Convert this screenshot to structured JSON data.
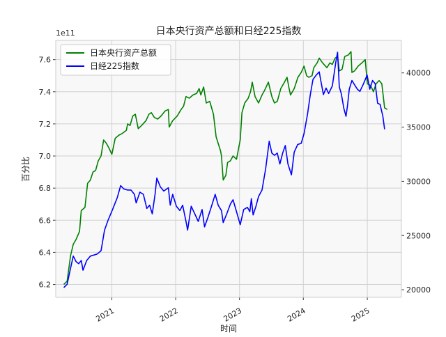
{
  "chart_data": {
    "type": "line",
    "title": "日本央行资产总额和日经225指数",
    "xlabel": "时间",
    "ylabel_left": "百分比",
    "left_offset_text": "1e11",
    "x_ticks": [
      {
        "label": "2021",
        "date": "2021-01-01"
      },
      {
        "label": "2022",
        "date": "2022-01-01"
      },
      {
        "label": "2023",
        "date": "2023-01-01"
      },
      {
        "label": "2024",
        "date": "2024-01-01"
      },
      {
        "label": "2025",
        "date": "2025-01-01"
      }
    ],
    "xlim": [
      "2020-02-15",
      "2025-07-15"
    ],
    "ylim_left": [
      6.12,
      7.72
    ],
    "yticks_left": [
      {
        "value": 6.2,
        "label": "6.2"
      },
      {
        "value": 6.4,
        "label": "6.4"
      },
      {
        "value": 6.6,
        "label": "6.6"
      },
      {
        "value": 6.8,
        "label": "6.8"
      },
      {
        "value": 7.0,
        "label": "7.0"
      },
      {
        "value": 7.2,
        "label": "7.2"
      },
      {
        "value": 7.4,
        "label": "7.4"
      },
      {
        "value": 7.6,
        "label": "7.6"
      }
    ],
    "ylim_right": [
      19300,
      43000
    ],
    "yticks_right": [
      {
        "value": 20000,
        "label": "20000"
      },
      {
        "value": 25000,
        "label": "25000"
      },
      {
        "value": 30000,
        "label": "30000"
      },
      {
        "value": 35000,
        "label": "35000"
      },
      {
        "value": 40000,
        "label": "40000"
      }
    ],
    "grid": true,
    "legend_position": "top-left",
    "series": [
      {
        "name": "日本央行资产总额",
        "axis": "left",
        "color": "#008000",
        "points": [
          [
            "2020-04-01",
            6.2
          ],
          [
            "2020-04-20",
            6.22
          ],
          [
            "2020-05-10",
            6.38
          ],
          [
            "2020-05-25",
            6.45
          ],
          [
            "2020-06-10",
            6.48
          ],
          [
            "2020-06-30",
            6.53
          ],
          [
            "2020-07-10",
            6.66
          ],
          [
            "2020-07-31",
            6.68
          ],
          [
            "2020-08-15",
            6.83
          ],
          [
            "2020-08-31",
            6.85
          ],
          [
            "2020-09-15",
            6.9
          ],
          [
            "2020-09-30",
            6.91
          ],
          [
            "2020-10-15",
            6.97
          ],
          [
            "2020-10-31",
            7.0
          ],
          [
            "2020-11-15",
            7.1
          ],
          [
            "2020-11-30",
            7.08
          ],
          [
            "2020-12-15",
            7.05
          ],
          [
            "2021-01-01",
            7.01
          ],
          [
            "2021-01-20",
            7.11
          ],
          [
            "2021-02-10",
            7.13
          ],
          [
            "2021-03-01",
            7.14
          ],
          [
            "2021-03-25",
            7.16
          ],
          [
            "2021-04-01",
            7.2
          ],
          [
            "2021-04-15",
            7.19
          ],
          [
            "2021-05-01",
            7.25
          ],
          [
            "2021-05-15",
            7.26
          ],
          [
            "2021-06-01",
            7.17
          ],
          [
            "2021-06-20",
            7.19
          ],
          [
            "2021-07-15",
            7.22
          ],
          [
            "2021-08-01",
            7.26
          ],
          [
            "2021-08-15",
            7.27
          ],
          [
            "2021-09-01",
            7.24
          ],
          [
            "2021-09-20",
            7.23
          ],
          [
            "2021-10-10",
            7.25
          ],
          [
            "2021-11-01",
            7.28
          ],
          [
            "2021-11-20",
            7.29
          ],
          [
            "2021-11-25",
            7.18
          ],
          [
            "2021-12-15",
            7.22
          ],
          [
            "2022-01-10",
            7.25
          ],
          [
            "2022-02-01",
            7.29
          ],
          [
            "2022-02-15",
            7.31
          ],
          [
            "2022-03-01",
            7.37
          ],
          [
            "2022-03-20",
            7.36
          ],
          [
            "2022-04-10",
            7.38
          ],
          [
            "2022-05-01",
            7.39
          ],
          [
            "2022-05-15",
            7.42
          ],
          [
            "2022-05-25",
            7.38
          ],
          [
            "2022-06-10",
            7.43
          ],
          [
            "2022-06-25",
            7.33
          ],
          [
            "2022-07-15",
            7.34
          ],
          [
            "2022-08-05",
            7.26
          ],
          [
            "2022-08-20",
            7.12
          ],
          [
            "2022-09-15",
            7.03
          ],
          [
            "2022-09-20",
            7.0
          ],
          [
            "2022-09-30",
            6.85
          ],
          [
            "2022-10-15",
            6.88
          ],
          [
            "2022-10-25",
            6.96
          ],
          [
            "2022-11-10",
            6.97
          ],
          [
            "2022-11-25",
            7.0
          ],
          [
            "2022-12-15",
            6.98
          ],
          [
            "2023-01-05",
            7.1
          ],
          [
            "2023-01-15",
            7.27
          ],
          [
            "2023-01-31",
            7.33
          ],
          [
            "2023-02-20",
            7.36
          ],
          [
            "2023-03-05",
            7.4
          ],
          [
            "2023-03-15",
            7.46
          ],
          [
            "2023-03-31",
            7.37
          ],
          [
            "2023-04-20",
            7.33
          ],
          [
            "2023-05-10",
            7.38
          ],
          [
            "2023-05-25",
            7.41
          ],
          [
            "2023-06-15",
            7.46
          ],
          [
            "2023-07-05",
            7.37
          ],
          [
            "2023-07-20",
            7.33
          ],
          [
            "2023-08-05",
            7.34
          ],
          [
            "2023-08-25",
            7.42
          ],
          [
            "2023-09-15",
            7.46
          ],
          [
            "2023-09-30",
            7.49
          ],
          [
            "2023-10-10",
            7.43
          ],
          [
            "2023-10-20",
            7.38
          ],
          [
            "2023-11-10",
            7.42
          ],
          [
            "2023-12-01",
            7.49
          ],
          [
            "2023-12-20",
            7.52
          ],
          [
            "2024-01-05",
            7.56
          ],
          [
            "2024-01-20",
            7.5
          ],
          [
            "2024-02-01",
            7.49
          ],
          [
            "2024-02-20",
            7.5
          ],
          [
            "2024-03-01",
            7.55
          ],
          [
            "2024-03-20",
            7.58
          ],
          [
            "2024-04-01",
            7.61
          ],
          [
            "2024-04-20",
            7.58
          ],
          [
            "2024-05-15",
            7.55
          ],
          [
            "2024-06-01",
            7.58
          ],
          [
            "2024-06-15",
            7.57
          ],
          [
            "2024-07-01",
            7.61
          ],
          [
            "2024-07-15",
            7.62
          ],
          [
            "2024-07-25",
            7.53
          ],
          [
            "2024-08-10",
            7.54
          ],
          [
            "2024-08-25",
            7.62
          ],
          [
            "2024-09-15",
            7.63
          ],
          [
            "2024-09-30",
            7.65
          ],
          [
            "2024-10-05",
            7.52
          ],
          [
            "2024-10-20",
            7.53
          ],
          [
            "2024-11-10",
            7.56
          ],
          [
            "2024-12-01",
            7.58
          ],
          [
            "2024-12-20",
            7.6
          ],
          [
            "2025-01-01",
            7.45
          ],
          [
            "2025-01-20",
            7.44
          ],
          [
            "2025-02-05",
            7.4
          ],
          [
            "2025-02-20",
            7.45
          ],
          [
            "2025-03-10",
            7.47
          ],
          [
            "2025-03-25",
            7.45
          ],
          [
            "2025-04-10",
            7.3
          ],
          [
            "2025-04-25",
            7.29
          ]
        ]
      },
      {
        "name": "日经225指数",
        "axis": "right",
        "color": "#0000ff",
        "points": [
          [
            "2020-04-01",
            20200
          ],
          [
            "2020-04-20",
            20500
          ],
          [
            "2020-05-10",
            22000
          ],
          [
            "2020-05-25",
            23100
          ],
          [
            "2020-06-10",
            22600
          ],
          [
            "2020-06-25",
            22400
          ],
          [
            "2020-07-10",
            22700
          ],
          [
            "2020-07-20",
            21800
          ],
          [
            "2020-08-10",
            22700
          ],
          [
            "2020-08-31",
            23100
          ],
          [
            "2020-09-20",
            23200
          ],
          [
            "2020-10-10",
            23300
          ],
          [
            "2020-10-31",
            23600
          ],
          [
            "2020-11-20",
            25500
          ],
          [
            "2020-12-10",
            26400
          ],
          [
            "2021-01-05",
            27400
          ],
          [
            "2021-02-01",
            28500
          ],
          [
            "2021-02-20",
            29600
          ],
          [
            "2021-03-10",
            29300
          ],
          [
            "2021-03-31",
            29200
          ],
          [
            "2021-04-20",
            29200
          ],
          [
            "2021-05-10",
            28800
          ],
          [
            "2021-05-20",
            28000
          ],
          [
            "2021-06-10",
            29000
          ],
          [
            "2021-06-30",
            28800
          ],
          [
            "2021-07-20",
            27500
          ],
          [
            "2021-08-05",
            27800
          ],
          [
            "2021-08-20",
            27000
          ],
          [
            "2021-09-05",
            28800
          ],
          [
            "2021-09-15",
            30300
          ],
          [
            "2021-10-05",
            29500
          ],
          [
            "2021-10-25",
            29100
          ],
          [
            "2021-11-20",
            29400
          ],
          [
            "2021-12-01",
            27800
          ],
          [
            "2021-12-15",
            28800
          ],
          [
            "2022-01-05",
            27700
          ],
          [
            "2022-01-25",
            27300
          ],
          [
            "2022-02-10",
            27800
          ],
          [
            "2022-03-01",
            26300
          ],
          [
            "2022-03-10",
            25500
          ],
          [
            "2022-03-31",
            27700
          ],
          [
            "2022-04-20",
            27000
          ],
          [
            "2022-05-10",
            26300
          ],
          [
            "2022-06-01",
            27400
          ],
          [
            "2022-06-15",
            25800
          ],
          [
            "2022-07-05",
            26700
          ],
          [
            "2022-07-25",
            27700
          ],
          [
            "2022-08-15",
            28800
          ],
          [
            "2022-09-01",
            27800
          ],
          [
            "2022-09-20",
            27300
          ],
          [
            "2022-09-30",
            26200
          ],
          [
            "2022-10-20",
            27000
          ],
          [
            "2022-11-10",
            27900
          ],
          [
            "2022-11-25",
            28300
          ],
          [
            "2022-12-15",
            27200
          ],
          [
            "2023-01-05",
            26000
          ],
          [
            "2023-01-25",
            27400
          ],
          [
            "2023-02-15",
            27600
          ],
          [
            "2023-03-01",
            27200
          ],
          [
            "2023-03-10",
            28400
          ],
          [
            "2023-03-20",
            26900
          ],
          [
            "2023-04-05",
            27700
          ],
          [
            "2023-04-20",
            28600
          ],
          [
            "2023-05-10",
            29200
          ],
          [
            "2023-05-31",
            31200
          ],
          [
            "2023-06-20",
            33700
          ],
          [
            "2023-07-05",
            32600
          ],
          [
            "2023-07-20",
            32400
          ],
          [
            "2023-08-05",
            32600
          ],
          [
            "2023-08-20",
            31600
          ],
          [
            "2023-09-05",
            32600
          ],
          [
            "2023-09-20",
            33300
          ],
          [
            "2023-10-05",
            31600
          ],
          [
            "2023-10-25",
            30600
          ],
          [
            "2023-11-10",
            32700
          ],
          [
            "2023-11-30",
            33400
          ],
          [
            "2023-12-20",
            33500
          ],
          [
            "2024-01-05",
            34400
          ],
          [
            "2024-01-25",
            36200
          ],
          [
            "2024-02-10",
            38000
          ],
          [
            "2024-02-25",
            39400
          ],
          [
            "2024-03-15",
            39800
          ],
          [
            "2024-04-01",
            40100
          ],
          [
            "2024-04-10",
            39300
          ],
          [
            "2024-04-25",
            38000
          ],
          [
            "2024-05-10",
            38600
          ],
          [
            "2024-05-25",
            38100
          ],
          [
            "2024-06-15",
            38800
          ],
          [
            "2024-07-05",
            41000
          ],
          [
            "2024-07-15",
            41900
          ],
          [
            "2024-07-25",
            38700
          ],
          [
            "2024-08-05",
            38100
          ],
          [
            "2024-08-20",
            36700
          ],
          [
            "2024-09-01",
            36000
          ],
          [
            "2024-09-10",
            37000
          ],
          [
            "2024-09-20",
            38500
          ],
          [
            "2024-10-05",
            39300
          ],
          [
            "2024-10-20",
            38900
          ],
          [
            "2024-11-05",
            38500
          ],
          [
            "2024-11-20",
            38300
          ],
          [
            "2024-12-10",
            39000
          ],
          [
            "2024-12-31",
            39800
          ],
          [
            "2025-01-15",
            38500
          ],
          [
            "2025-01-31",
            39300
          ],
          [
            "2025-02-15",
            39000
          ],
          [
            "2025-03-01",
            37200
          ],
          [
            "2025-03-15",
            37100
          ],
          [
            "2025-03-31",
            36000
          ],
          [
            "2025-04-10",
            34800
          ]
        ]
      }
    ]
  }
}
